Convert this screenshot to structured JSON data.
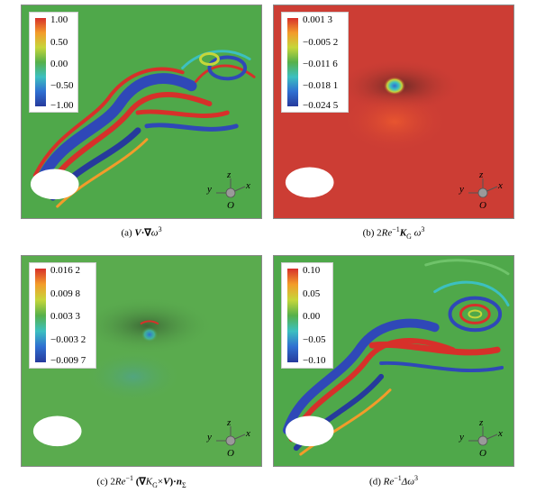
{
  "panels": [
    {
      "caption_parts": [
        "(a) ",
        "V",
        "·",
        "∇",
        "ω",
        "3"
      ],
      "colorbar_labels": [
        "1.00",
        "0.50",
        "0.00",
        "−0.50",
        "−1.00"
      ],
      "background": "#4fa84a"
    },
    {
      "caption_parts": [
        "(b) 2",
        "Re",
        "−1",
        "K",
        "G",
        "ω",
        "3"
      ],
      "colorbar_labels": [
        "0.001 3",
        "−0.005 2",
        "−0.011 6",
        "−0.018 1",
        "−0.024 5"
      ],
      "background": "#cc3d34"
    },
    {
      "caption_parts": [
        "(c) 2",
        "Re",
        "−1",
        "(∇",
        "K",
        "G",
        "×",
        "V",
        ")·",
        "n",
        "Σ"
      ],
      "colorbar_labels": [
        "0.016 2",
        "0.009 8",
        "0.003 3",
        "−0.003 2",
        "−0.009 7"
      ],
      "background": "#5aab4e"
    },
    {
      "caption_parts": [
        "(d) ",
        "Re",
        "−1",
        "Δω",
        "3"
      ],
      "colorbar_labels": [
        "0.10",
        "0.05",
        "0.00",
        "−0.05",
        "−0.10"
      ],
      "background": "#4fa84a"
    }
  ],
  "axes_labels": {
    "y": "y",
    "z": "z",
    "x": "x",
    "o": "O"
  },
  "colormap": [
    "#d7302a",
    "#f39b2a",
    "#c6d63a",
    "#56b04a",
    "#3cc0c0",
    "#2f6fd1",
    "#263a9c"
  ]
}
